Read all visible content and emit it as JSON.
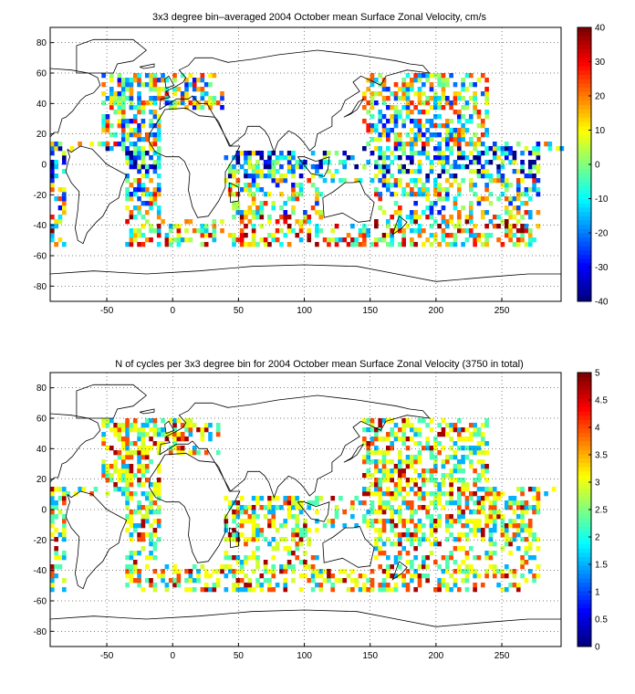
{
  "chart_data": [
    {
      "type": "heatmap",
      "title": "3x3 degree bin–averaged 2004 October mean Surface Zonal Velocity, cm/s",
      "xlim": [
        -93,
        295
      ],
      "ylim": [
        -90,
        90
      ],
      "xticks": [
        -50,
        0,
        50,
        100,
        150,
        200,
        250
      ],
      "yticks": [
        -80,
        -60,
        -40,
        -20,
        0,
        20,
        40,
        60,
        80
      ],
      "xticklabels": [
        "-50",
        "0",
        "50",
        "100",
        "150",
        "200",
        "250"
      ],
      "yticklabels": [
        "-80",
        "-60",
        "-40",
        "-20",
        "0",
        "20",
        "40",
        "60",
        "80"
      ],
      "grid": true,
      "colormap": "jet",
      "colorbar": {
        "min": -40,
        "max": 40,
        "ticks": [
          -40,
          -30,
          -20,
          -10,
          0,
          10,
          20,
          30,
          40
        ],
        "ticklabels": [
          "-40",
          "-30",
          "-20",
          "-10",
          "0",
          "10",
          "20",
          "30",
          "40"
        ]
      },
      "bin_size_deg": 3,
      "value_range": [
        -40,
        40
      ],
      "value_mode": "velocity"
    },
    {
      "type": "heatmap",
      "title": "N of cycles per 3x3 degree bin for 2004 October mean Surface Zonal Velocity (3750 in total)",
      "xlim": [
        -93,
        295
      ],
      "ylim": [
        -90,
        90
      ],
      "xticks": [
        -50,
        0,
        50,
        100,
        150,
        200,
        250
      ],
      "yticks": [
        -80,
        -60,
        -40,
        -20,
        0,
        20,
        40,
        60,
        80
      ],
      "xticklabels": [
        "-50",
        "0",
        "50",
        "100",
        "150",
        "200",
        "250"
      ],
      "yticklabels": [
        "-80",
        "-60",
        "-40",
        "-20",
        "0",
        "20",
        "40",
        "60",
        "80"
      ],
      "grid": true,
      "colormap": "jet",
      "colorbar": {
        "min": 0,
        "max": 5,
        "ticks": [
          0,
          0.5,
          1,
          1.5,
          2,
          2.5,
          3,
          3.5,
          4,
          4.5,
          5
        ],
        "ticklabels": [
          "0",
          "0.5",
          "1",
          "1.5",
          "2",
          "2.5",
          "3",
          "3.5",
          "4",
          "4.5",
          "5"
        ]
      },
      "bin_size_deg": 3,
      "value_range": [
        0,
        5
      ],
      "value_mode": "count"
    }
  ]
}
